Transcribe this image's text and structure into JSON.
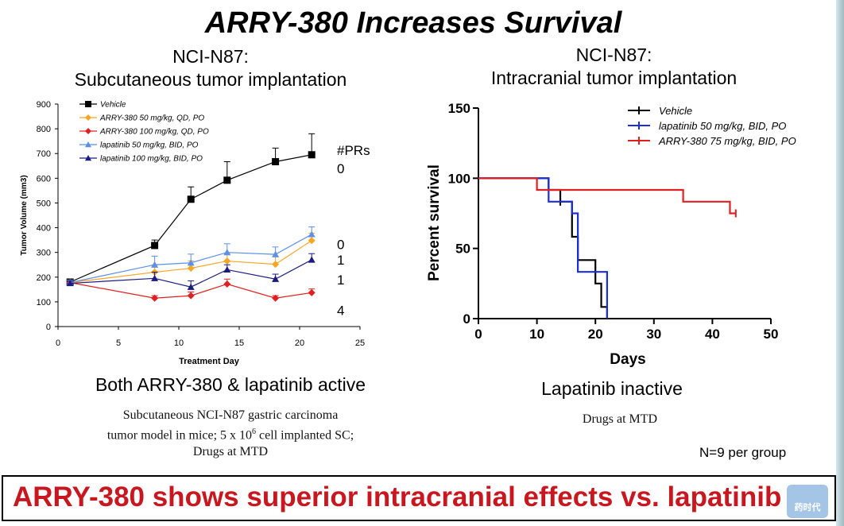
{
  "title": "ARRY-380 Increases Survival",
  "left_header": [
    "NCI-N87:",
    "Subcutaneous tumor implantation"
  ],
  "right_header": [
    "NCI-N87:",
    "Intracranial tumor implantation"
  ],
  "left_caption": "Both ARRY-380 & lapatinib active",
  "left_note_1": "Subcutaneous NCI-N87 gastric carcinoma",
  "left_note_2a": "tumor model in mice; 5 x 10",
  "left_note_2b": "6",
  "left_note_2c": " cell implanted SC;",
  "left_note_3": "Drugs at MTD",
  "right_caption": "Lapatinib inactive",
  "right_note": "Drugs at MTD",
  "n_note": "N=9 per group",
  "banner": "ARRY-380 shows superior intracranial effects vs. lapatinib",
  "watermark": "药时代",
  "chart_data": [
    {
      "type": "line",
      "title": "",
      "xlabel": "Treatment Day",
      "ylabel": "Tumor Volume (mm3)",
      "xlim": [
        0,
        25
      ],
      "ylim": [
        0,
        900
      ],
      "xticks": [
        0,
        5,
        10,
        15,
        20,
        25
      ],
      "yticks": [
        0,
        100,
        200,
        300,
        400,
        500,
        600,
        700,
        800,
        900
      ],
      "legend_position": "top-left",
      "x": [
        1,
        8,
        11,
        14,
        18,
        21
      ],
      "series": [
        {
          "name": "Vehicle",
          "color": "#000000",
          "marker": "square",
          "values": [
            180,
            328,
            515,
            592,
            667,
            695
          ],
          "errors": [
            12,
            22,
            50,
            75,
            55,
            85
          ]
        },
        {
          "name": "ARRY-380 50 mg/kg, QD, PO",
          "color": "#f5a623",
          "marker": "diamond",
          "values": [
            178,
            220,
            236,
            265,
            252,
            348
          ],
          "errors": [
            10,
            30,
            30,
            30,
            30,
            30
          ]
        },
        {
          "name": "ARRY-380 100 mg/kg, QD, PO",
          "color": "#e02020",
          "marker": "diamond",
          "values": [
            178,
            115,
            125,
            172,
            115,
            137
          ],
          "errors": [
            10,
            10,
            15,
            20,
            10,
            15
          ]
        },
        {
          "name": "lapatinib 50 mg/kg, BID, PO",
          "color": "#5b8fe8",
          "marker": "triangle",
          "values": [
            178,
            250,
            258,
            300,
            292,
            373
          ],
          "errors": [
            10,
            35,
            35,
            35,
            30,
            30
          ]
        },
        {
          "name": "lapatinib 100 mg/kg, BID, PO",
          "color": "#1a1a80",
          "marker": "triangle",
          "values": [
            175,
            195,
            160,
            230,
            192,
            270
          ],
          "errors": [
            10,
            25,
            25,
            20,
            20,
            25
          ]
        }
      ],
      "annotations": {
        "header": "#PRs",
        "values": [
          "0",
          "0",
          "1",
          "1",
          "4"
        ],
        "anchor_y": [
          640,
          332,
          270,
          190,
          66
        ]
      }
    },
    {
      "type": "line",
      "step": true,
      "title": "",
      "xlabel": "Days",
      "ylabel": "Percent survival",
      "xlim": [
        0,
        50
      ],
      "ylim": [
        0,
        150
      ],
      "xticks": [
        0,
        10,
        20,
        30,
        40,
        50
      ],
      "yticks": [
        0,
        50,
        100,
        150
      ],
      "legend_position": "top-right",
      "series": [
        {
          "name": "Vehicle",
          "color": "#000000",
          "x": [
            0,
            12,
            14,
            16,
            17,
            20,
            21,
            22
          ],
          "values": [
            100,
            91.7,
            83.3,
            58.3,
            41.7,
            25,
            8.3,
            0
          ],
          "censor_x": [
            14
          ]
        },
        {
          "name": "lapatinib 50 mg/kg, BID, PO",
          "color": "#1c2fd6",
          "x": [
            0,
            12,
            16,
            17,
            22
          ],
          "values": [
            100,
            83.3,
            75,
            33.3,
            0
          ],
          "censor_x": []
        },
        {
          "name": "ARRY-380 75 mg/kg, BID, PO",
          "color": "#e02020",
          "x": [
            0,
            10,
            35,
            43,
            44
          ],
          "values": [
            100,
            91.7,
            83.3,
            75,
            75
          ],
          "censor_x": [
            44
          ]
        }
      ]
    }
  ]
}
